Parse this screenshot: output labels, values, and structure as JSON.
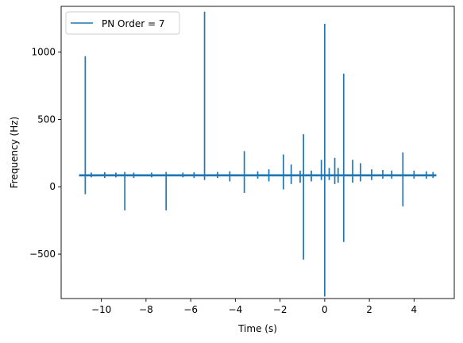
{
  "chart_data": {
    "type": "line",
    "title": "",
    "xlabel": "Time (s)",
    "ylabel": "Frequency (Hz)",
    "xlim": [
      -11.8,
      5.8
    ],
    "ylim": [
      -830,
      1340
    ],
    "xticks": [
      -10,
      -8,
      -6,
      -4,
      -2,
      0,
      2,
      4
    ],
    "xtick_labels": [
      "−10",
      "−8",
      "−6",
      "−4",
      "−2",
      "0",
      "2",
      "4"
    ],
    "yticks": [
      -500,
      0,
      500,
      1000
    ],
    "ytick_labels": [
      "−500",
      "0",
      "500",
      "1000"
    ],
    "grid": false,
    "legend_position": "top-left",
    "colors": {
      "series": "#1f77b4",
      "axes": "#000000",
      "legend_border": "#cccccc"
    },
    "series": [
      {
        "name": "PN Order = 7",
        "baseline": 85,
        "x_range": [
          -11.0,
          5.0
        ],
        "spikes": [
          {
            "t": -10.72,
            "high": 970,
            "low": -55
          },
          {
            "t": -10.45,
            "high": 105,
            "low": 70
          },
          {
            "t": -9.85,
            "high": 108,
            "low": 65
          },
          {
            "t": -9.35,
            "high": 105,
            "low": 70
          },
          {
            "t": -8.95,
            "high": 110,
            "low": -175
          },
          {
            "t": -8.55,
            "high": 105,
            "low": 65
          },
          {
            "t": -7.75,
            "high": 105,
            "low": 70
          },
          {
            "t": -7.1,
            "high": 110,
            "low": -175
          },
          {
            "t": -6.35,
            "high": 105,
            "low": 70
          },
          {
            "t": -5.85,
            "high": 108,
            "low": 65
          },
          {
            "t": -5.38,
            "high": 1300,
            "low": 50
          },
          {
            "t": -4.8,
            "high": 110,
            "low": 65
          },
          {
            "t": -4.25,
            "high": 115,
            "low": 40
          },
          {
            "t": -3.6,
            "high": 265,
            "low": -45
          },
          {
            "t": -3.0,
            "high": 115,
            "low": 60
          },
          {
            "t": -2.5,
            "high": 130,
            "low": 40
          },
          {
            "t": -1.85,
            "high": 240,
            "low": -20
          },
          {
            "t": -1.5,
            "high": 165,
            "low": 20
          },
          {
            "t": -1.1,
            "high": 120,
            "low": 30
          },
          {
            "t": -0.95,
            "high": 390,
            "low": -540
          },
          {
            "t": -0.6,
            "high": 120,
            "low": 40
          },
          {
            "t": -0.15,
            "high": 200,
            "low": 50
          },
          {
            "t": 0.0,
            "high": 1210,
            "low": -815
          },
          {
            "t": 0.2,
            "high": 140,
            "low": 50
          },
          {
            "t": 0.45,
            "high": 215,
            "low": 20
          },
          {
            "t": 0.6,
            "high": 140,
            "low": 30
          },
          {
            "t": 0.85,
            "high": 840,
            "low": -410
          },
          {
            "t": 1.25,
            "high": 200,
            "low": 30
          },
          {
            "t": 1.6,
            "high": 175,
            "low": 40
          },
          {
            "t": 2.1,
            "high": 130,
            "low": 50
          },
          {
            "t": 2.6,
            "high": 125,
            "low": 60
          },
          {
            "t": 3.0,
            "high": 120,
            "low": 60
          },
          {
            "t": 3.5,
            "high": 255,
            "low": -145
          },
          {
            "t": 4.0,
            "high": 120,
            "low": 60
          },
          {
            "t": 4.55,
            "high": 115,
            "low": 60
          },
          {
            "t": 4.85,
            "high": 110,
            "low": 65
          }
        ]
      }
    ]
  }
}
